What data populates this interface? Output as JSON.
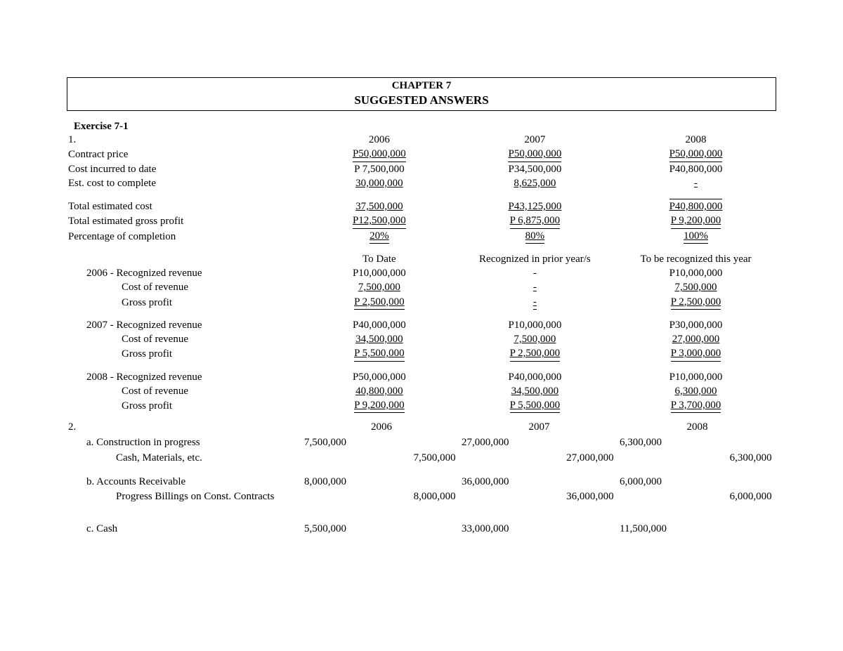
{
  "title": {
    "line1": "CHAPTER 7",
    "line2": "SUGGESTED ANSWERS"
  },
  "exercise": "Exercise 7-1",
  "section1": {
    "num": "1.",
    "year_heads": [
      "2006",
      "2007",
      "2008"
    ],
    "rows1": [
      {
        "label": "Contract price",
        "indent": "indent1",
        "vals": [
          "P50,000,000",
          "P50,000,000",
          "P50,000,000"
        ],
        "style": "u-double"
      },
      {
        "label": "Cost incurred to date",
        "indent": "indent1",
        "vals": [
          "P  7,500,000",
          "P34,500,000",
          "P40,800,000"
        ],
        "style": ""
      },
      {
        "label": "Est. cost to complete",
        "indent": "indent1",
        "vals": [
          "  30,000,000",
          "    8,625,000",
          "-"
        ],
        "style": "u-single"
      }
    ],
    "rows2": [
      {
        "label": "Total estimated cost",
        "indent": "indent1",
        "vals": [
          "  37,500,000",
          "P43,125,000",
          "P40,800,000"
        ],
        "style": "u-single",
        "last_over": true
      },
      {
        "label": "Total estimated gross profit",
        "indent": "indent1",
        "vals": [
          "P12,500,000",
          "P  6,875,000",
          "P  9,200,000"
        ],
        "style": "u-double"
      },
      {
        "label": "Percentage of completion",
        "indent": "indent1",
        "vals": [
          "20%",
          "80%",
          "100%"
        ],
        "style": "u-double"
      }
    ],
    "mid_heads": [
      "To Date",
      "Recognized in prior year/s",
      "To be recognized this year"
    ],
    "blocks": [
      {
        "prefix": "2006 - ",
        "rows": [
          {
            "label": "Recognized revenue",
            "vals": [
              "P10,000,000",
              "-",
              "P10,000,000"
            ],
            "style": ""
          },
          {
            "label": "Cost of revenue",
            "vals": [
              "    7,500,000",
              "-",
              "    7,500,000"
            ],
            "style": "u-single"
          },
          {
            "label": "Gross profit",
            "vals": [
              "P  2,500,000",
              "-",
              "P  2,500,000"
            ],
            "style": "u-double"
          }
        ]
      },
      {
        "prefix": "2007 - ",
        "rows": [
          {
            "label": "Recognized revenue",
            "vals": [
              "P40,000,000",
              "P10,000,000",
              "P30,000,000"
            ],
            "style": ""
          },
          {
            "label": "Cost of revenue",
            "vals": [
              "  34,500,000",
              "    7,500,000",
              "  27,000,000"
            ],
            "style": "u-single"
          },
          {
            "label": "Gross profit",
            "vals": [
              "P  5,500,000",
              "P  2,500,000",
              "P 3,000,000"
            ],
            "style": "u-double"
          }
        ]
      },
      {
        "prefix": "2008 - ",
        "rows": [
          {
            "label": "Recognized revenue",
            "vals": [
              "P50,000,000",
              "P40,000,000",
              "P10,000,000"
            ],
            "style": ""
          },
          {
            "label": "Cost of revenue",
            "vals": [
              "  40,800,000",
              "  34,500,000",
              "    6,300,000"
            ],
            "style": "u-single"
          },
          {
            "label": "Gross profit",
            "vals": [
              "P  9,200,000",
              "P  5,500,000",
              "P  3,700,000"
            ],
            "style": "u-double"
          }
        ]
      }
    ]
  },
  "section2": {
    "num": "2.",
    "year_heads": [
      "2006",
      "2007",
      "2008"
    ],
    "entries": [
      {
        "letter": "a.",
        "lines": [
          {
            "label": "Construction in progress",
            "debit": [
              "7,500,000",
              "27,000,000",
              "6,300,000"
            ],
            "credit": [
              "",
              "",
              ""
            ]
          },
          {
            "label": "Cash, Materials, etc.",
            "sub": true,
            "debit": [
              "",
              "",
              ""
            ],
            "credit": [
              "7,500,000",
              "27,000,000",
              "6,300,000"
            ]
          }
        ]
      },
      {
        "letter": "b.",
        "lines": [
          {
            "label": "Accounts Receivable",
            "debit": [
              "8,000,000",
              "36,000,000",
              "6,000,000"
            ],
            "credit": [
              "",
              "",
              ""
            ]
          },
          {
            "label": "Progress Billings on Const. Contracts",
            "sub": true,
            "debit": [
              "",
              "",
              ""
            ],
            "credit": [
              "8,000,000",
              "36,000,000",
              "6,000,000"
            ]
          }
        ]
      },
      {
        "letter": "c.",
        "lines": [
          {
            "label": "Cash",
            "debit": [
              "5,500,000",
              "33,000,000",
              "11,500,000"
            ],
            "credit": [
              "",
              "",
              ""
            ]
          }
        ]
      }
    ]
  }
}
